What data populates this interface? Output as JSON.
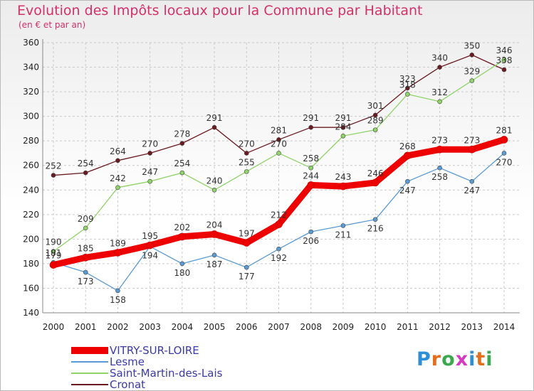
{
  "title": "Evolution des Impôts locaux pour la Commune par Habitant",
  "subtitle": "(en € et par an)",
  "logo": {
    "chars": [
      "P",
      "r",
      "o",
      "x",
      "i",
      "t",
      "i"
    ],
    "colors": [
      "#2e8fd6",
      "#e36f1e",
      "#3aa84c",
      "#d63ac1",
      "#2e8fd6",
      "#e36f1e",
      "#3aa84c"
    ]
  },
  "chart_data": {
    "type": "line",
    "title": "Evolution des Impôts locaux pour la Commune par Habitant",
    "subtitle": "(en € et par an)",
    "x": [
      "2000",
      "2001",
      "2002",
      "2003",
      "2004",
      "2005",
      "2006",
      "2007",
      "2008",
      "2009",
      "2010",
      "2011",
      "2012",
      "2013",
      "2014"
    ],
    "ylim": [
      140,
      360
    ],
    "yticks": [
      140,
      160,
      180,
      200,
      220,
      240,
      260,
      280,
      300,
      320,
      340,
      360
    ],
    "grid": true,
    "series": [
      {
        "name": "Cronat",
        "color": "#6b1a1f",
        "values": [
          252,
          254,
          264,
          270,
          278,
          291,
          270,
          281,
          291,
          291,
          301,
          323,
          340,
          350,
          338
        ]
      },
      {
        "name": "Saint-Martin-des-Lais",
        "color": "#8fd468",
        "values": [
          190,
          209,
          242,
          247,
          254,
          240,
          255,
          270,
          258,
          284,
          289,
          318,
          312,
          329,
          346
        ]
      },
      {
        "name": "Lesme",
        "color": "#5a9bd4",
        "values": [
          181,
          173,
          158,
          194,
          180,
          187,
          177,
          192,
          206,
          211,
          216,
          247,
          258,
          247,
          270
        ]
      },
      {
        "name": "VITRY-SUR-LOIRE",
        "color": "#ee0000",
        "values": [
          179,
          185,
          189,
          195,
          202,
          204,
          197,
          212,
          244,
          243,
          246,
          268,
          273,
          273,
          281
        ]
      }
    ],
    "legend": [
      "VITRY-SUR-LOIRE",
      "Lesme",
      "Saint-Martin-des-Lais",
      "Cronat"
    ]
  }
}
